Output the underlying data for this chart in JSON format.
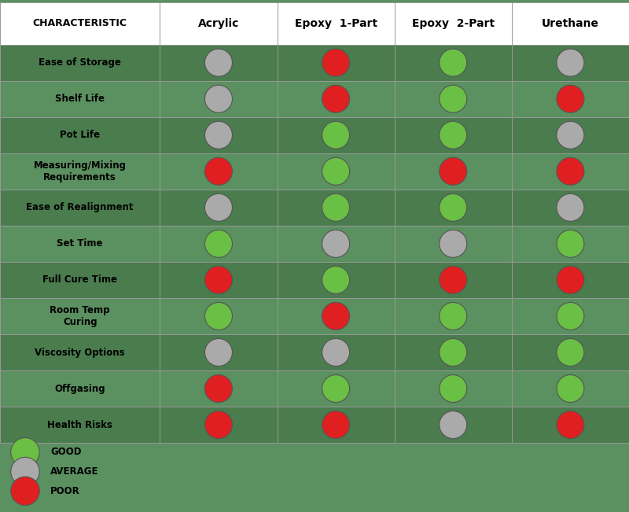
{
  "columns": [
    "CHARACTERISTIC",
    "Acrylic",
    "Epoxy  1-Part",
    "Epoxy  2-Part",
    "Urethane"
  ],
  "rows": [
    "Ease of Storage",
    "Shelf Life",
    "Pot Life",
    "Measuring/Mixing\nRequirements",
    "Ease of Realignment",
    "Set Time",
    "Full Cure Time",
    "Room Temp\nCuring",
    "Viscosity Options",
    "Offgasing",
    "Health Risks"
  ],
  "data": [
    [
      "AVERAGE",
      "POOR",
      "GOOD",
      "AVERAGE"
    ],
    [
      "AVERAGE",
      "POOR",
      "GOOD",
      "POOR"
    ],
    [
      "AVERAGE",
      "GOOD",
      "GOOD",
      "AVERAGE"
    ],
    [
      "POOR",
      "GOOD",
      "POOR",
      "POOR"
    ],
    [
      "AVERAGE",
      "GOOD",
      "GOOD",
      "AVERAGE"
    ],
    [
      "GOOD",
      "AVERAGE",
      "AVERAGE",
      "GOOD"
    ],
    [
      "POOR",
      "GOOD",
      "POOR",
      "POOR"
    ],
    [
      "GOOD",
      "POOR",
      "GOOD",
      "GOOD"
    ],
    [
      "AVERAGE",
      "AVERAGE",
      "GOOD",
      "GOOD"
    ],
    [
      "POOR",
      "GOOD",
      "GOOD",
      "GOOD"
    ],
    [
      "POOR",
      "POOR",
      "AVERAGE",
      "POOR"
    ]
  ],
  "color_map": {
    "GOOD": "#6abf45",
    "AVERAGE": "#aaaaaa",
    "POOR": "#e02020"
  },
  "row_bg_dark": "#4a7c4e",
  "row_bg_light": "#5b9060",
  "header_bg": "#ffffff",
  "header_text": "#000000",
  "border_color": "#999999",
  "page_bg": "#5b9060",
  "legend_labels": [
    "GOOD",
    "AVERAGE",
    "POOR"
  ],
  "legend_colors": [
    "#6abf45",
    "#aaaaaa",
    "#e02020"
  ],
  "fig_width": 8.0,
  "fig_height": 6.51
}
